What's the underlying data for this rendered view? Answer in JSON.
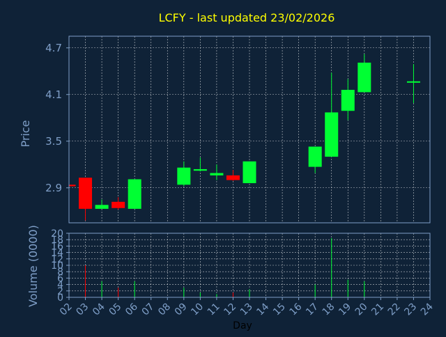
{
  "colors": {
    "background": "#0f2237",
    "axis_text": "#7f9fc8",
    "title": "#ffff00",
    "grid": "#ffffff",
    "up": "#00ff33",
    "down": "#ff0000",
    "xlabel": "#000000"
  },
  "chart_data": {
    "type": "candlestick",
    "title": "LCFY - last updated 23/02/2026",
    "price": {
      "ylabel": "Price",
      "ylim": [
        2.45,
        4.85
      ],
      "yticks": [
        2.9,
        3.5,
        4.1,
        4.7
      ],
      "ytick_labels": [
        "2.9",
        "3.5",
        "4.1",
        "4.7"
      ]
    },
    "volume": {
      "ylabel": "Volume (0000)",
      "ylim": [
        0,
        20
      ],
      "yticks": [
        0,
        2,
        4,
        6,
        8,
        10,
        12,
        14,
        16,
        18,
        20
      ],
      "ytick_labels": [
        "0",
        "2",
        "4",
        "6",
        "8",
        "10",
        "12",
        "14",
        "16",
        "18",
        "20"
      ]
    },
    "xlabel": "Day",
    "xlim": [
      2,
      24
    ],
    "xticks": [
      "02",
      "03",
      "04",
      "05",
      "06",
      "07",
      "08",
      "09",
      "10",
      "11",
      "12",
      "13",
      "14",
      "15",
      "16",
      "17",
      "18",
      "19",
      "20",
      "21",
      "22",
      "23",
      "24"
    ],
    "grid": true,
    "candles": [
      {
        "day": 2,
        "open": 2.94,
        "close": 2.92,
        "high": 2.95,
        "low": 2.91,
        "volume": 0
      },
      {
        "day": 3,
        "open": 3.03,
        "close": 2.63,
        "high": 3.03,
        "low": 2.48,
        "volume": 10
      },
      {
        "day": 4,
        "open": 2.63,
        "close": 2.68,
        "high": 2.75,
        "low": 2.63,
        "volume": 5
      },
      {
        "day": 5,
        "open": 2.72,
        "close": 2.64,
        "high": 2.78,
        "low": 2.62,
        "volume": 3
      },
      {
        "day": 6,
        "open": 2.63,
        "close": 3.01,
        "high": 3.01,
        "low": 2.63,
        "volume": 5
      },
      {
        "day": 9,
        "open": 2.94,
        "close": 3.16,
        "high": 3.24,
        "low": 2.92,
        "volume": 3
      },
      {
        "day": 10,
        "open": 3.12,
        "close": 3.14,
        "high": 3.29,
        "low": 3.11,
        "volume": 1.5
      },
      {
        "day": 11,
        "open": 3.06,
        "close": 3.09,
        "high": 3.2,
        "low": 3.0,
        "volume": 1
      },
      {
        "day": 12,
        "open": 3.06,
        "close": 3.0,
        "high": 3.13,
        "low": 2.99,
        "volume": 1.5
      },
      {
        "day": 13,
        "open": 2.96,
        "close": 3.24,
        "high": 3.24,
        "low": 2.96,
        "volume": 2.5
      },
      {
        "day": 17,
        "open": 3.17,
        "close": 3.43,
        "high": 3.43,
        "low": 3.09,
        "volume": 4
      },
      {
        "day": 18,
        "open": 3.3,
        "close": 3.87,
        "high": 4.38,
        "low": 3.3,
        "volume": 18.5
      },
      {
        "day": 19,
        "open": 3.89,
        "close": 4.16,
        "high": 4.3,
        "low": 3.77,
        "volume": 5.5
      },
      {
        "day": 20,
        "open": 4.13,
        "close": 4.51,
        "high": 4.62,
        "low": 4.13,
        "volume": 5
      },
      {
        "day": 23,
        "open": 4.26,
        "close": 4.27,
        "high": 4.49,
        "low": 3.99,
        "volume": 0
      }
    ]
  }
}
